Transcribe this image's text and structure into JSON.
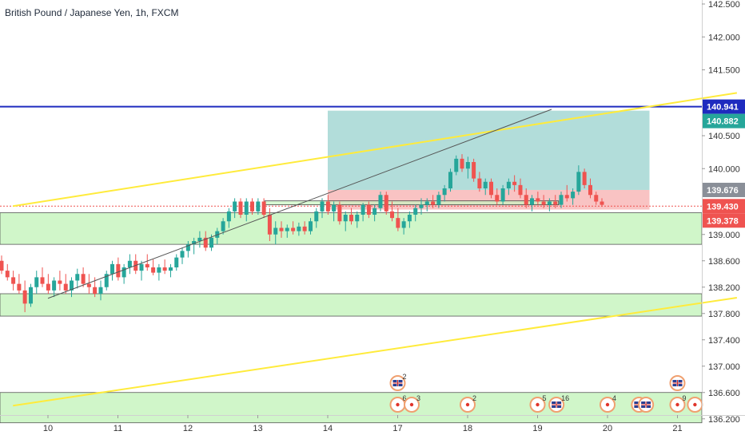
{
  "chart_data": {
    "type": "candlestick",
    "title": "British Pound / Japanese Yen, 1h, FXCM",
    "x_ticks": [
      {
        "day": 10,
        "label": "10"
      },
      {
        "day": 11,
        "label": "11"
      },
      {
        "day": 12,
        "label": "12"
      },
      {
        "day": 13,
        "label": "13"
      },
      {
        "day": 14,
        "label": "14"
      },
      {
        "day": 17,
        "label": "17"
      },
      {
        "day": 18,
        "label": "18"
      },
      {
        "day": 19,
        "label": "19"
      },
      {
        "day": 20,
        "label": "20"
      },
      {
        "day": 21,
        "label": "21"
      }
    ],
    "y_ticks": [
      "142.500",
      "142.000",
      "141.500",
      "140.500",
      "140.000",
      "139.000",
      "138.600",
      "138.200",
      "137.800",
      "137.400",
      "137.000",
      "136.600",
      "136.200"
    ],
    "ylim": [
      136.0,
      142.6
    ],
    "up_color": "#26a69a",
    "down_color": "#ef5350",
    "candles": [
      [
        0.0,
        138.6,
        138.68,
        138.4,
        138.45
      ],
      [
        0.083,
        138.45,
        138.55,
        138.3,
        138.35
      ],
      [
        0.167,
        138.35,
        138.45,
        138.15,
        138.25
      ],
      [
        0.25,
        138.25,
        138.4,
        138.1,
        138.15
      ],
      [
        0.333,
        138.15,
        138.3,
        137.82,
        137.95
      ],
      [
        0.417,
        137.95,
        138.25,
        137.9,
        138.2
      ],
      [
        0.5,
        138.2,
        138.45,
        138.1,
        138.35
      ],
      [
        0.583,
        138.35,
        138.5,
        138.2,
        138.25
      ],
      [
        0.667,
        138.25,
        138.4,
        138.1,
        138.15
      ],
      [
        0.75,
        138.15,
        138.35,
        138.05,
        138.3
      ],
      [
        0.833,
        138.3,
        138.45,
        138.15,
        138.25
      ],
      [
        0.917,
        138.25,
        138.4,
        138.1,
        138.15
      ],
      [
        1.0,
        138.15,
        138.35,
        138.05,
        138.3
      ],
      [
        1.083,
        138.3,
        138.48,
        138.18,
        138.4
      ],
      [
        1.167,
        138.4,
        138.5,
        138.2,
        138.25
      ],
      [
        1.25,
        138.25,
        138.4,
        138.1,
        138.2
      ],
      [
        1.333,
        138.2,
        138.35,
        138.05,
        138.1
      ],
      [
        1.417,
        138.1,
        138.3,
        138.0,
        138.2
      ],
      [
        1.5,
        138.2,
        138.45,
        138.15,
        138.4
      ],
      [
        1.583,
        138.4,
        138.6,
        138.3,
        138.55
      ],
      [
        1.667,
        138.55,
        138.65,
        138.3,
        138.35
      ],
      [
        1.75,
        138.35,
        138.55,
        138.25,
        138.5
      ],
      [
        1.833,
        138.5,
        138.7,
        138.4,
        138.6
      ],
      [
        1.917,
        138.6,
        138.7,
        138.4,
        138.45
      ],
      [
        2.0,
        138.45,
        138.6,
        138.3,
        138.55
      ],
      [
        2.083,
        138.55,
        138.7,
        138.45,
        138.5
      ],
      [
        2.167,
        138.5,
        138.62,
        138.38,
        138.42
      ],
      [
        2.25,
        138.42,
        138.55,
        138.3,
        138.5
      ],
      [
        2.333,
        138.5,
        138.62,
        138.4,
        138.45
      ],
      [
        2.417,
        138.45,
        138.55,
        138.35,
        138.5
      ],
      [
        2.5,
        138.5,
        138.7,
        138.45,
        138.65
      ],
      [
        2.583,
        138.65,
        138.8,
        138.55,
        138.75
      ],
      [
        2.667,
        138.75,
        138.9,
        138.65,
        138.85
      ],
      [
        2.75,
        138.85,
        138.95,
        138.7,
        138.9
      ],
      [
        2.833,
        138.9,
        139.05,
        138.8,
        138.95
      ],
      [
        2.917,
        138.95,
        139.05,
        138.75,
        138.8
      ],
      [
        3.0,
        138.8,
        139.0,
        138.75,
        138.95
      ],
      [
        3.083,
        138.95,
        139.1,
        138.85,
        139.05
      ],
      [
        3.167,
        139.05,
        139.25,
        139.0,
        139.2
      ],
      [
        3.25,
        139.2,
        139.4,
        139.1,
        139.35
      ],
      [
        3.333,
        139.35,
        139.55,
        139.25,
        139.5
      ],
      [
        3.417,
        139.5,
        139.55,
        139.25,
        139.3
      ],
      [
        3.5,
        139.3,
        139.55,
        139.2,
        139.5
      ],
      [
        3.583,
        139.5,
        139.55,
        139.3,
        139.35
      ],
      [
        3.667,
        139.35,
        139.55,
        139.3,
        139.5
      ],
      [
        3.75,
        139.5,
        139.55,
        139.25,
        139.3
      ],
      [
        3.833,
        139.3,
        139.4,
        138.9,
        139.0
      ],
      [
        3.917,
        139.0,
        139.2,
        138.85,
        139.1
      ],
      [
        4.0,
        139.1,
        139.2,
        138.95,
        139.05
      ],
      [
        4.083,
        139.05,
        139.15,
        138.95,
        139.1
      ],
      [
        4.167,
        139.1,
        139.2,
        139.0,
        139.05
      ],
      [
        4.25,
        139.05,
        139.18,
        138.98,
        139.12
      ],
      [
        4.333,
        139.12,
        139.2,
        139.0,
        139.05
      ],
      [
        4.417,
        139.05,
        139.25,
        139.0,
        139.2
      ],
      [
        4.5,
        139.2,
        139.4,
        139.1,
        139.35
      ],
      [
        4.583,
        139.35,
        139.55,
        139.25,
        139.5
      ],
      [
        4.667,
        139.5,
        139.6,
        139.3,
        139.35
      ],
      [
        4.75,
        139.35,
        139.5,
        139.2,
        139.45
      ],
      [
        4.833,
        139.45,
        139.5,
        139.15,
        139.2
      ],
      [
        4.917,
        139.2,
        139.35,
        139.05,
        139.3
      ],
      [
        5.0,
        139.3,
        139.4,
        139.15,
        139.2
      ],
      [
        5.083,
        139.2,
        139.35,
        139.1,
        139.3
      ],
      [
        5.167,
        139.3,
        139.48,
        139.2,
        139.45
      ],
      [
        5.25,
        139.45,
        139.5,
        139.25,
        139.3
      ],
      [
        5.333,
        139.3,
        139.45,
        139.2,
        139.4
      ],
      [
        5.417,
        139.4,
        139.65,
        139.35,
        139.6
      ],
      [
        5.5,
        139.6,
        139.65,
        139.3,
        139.35
      ],
      [
        5.583,
        139.35,
        139.5,
        139.2,
        139.25
      ],
      [
        5.667,
        139.25,
        139.4,
        139.05,
        139.1
      ],
      [
        5.75,
        139.1,
        139.25,
        139.0,
        139.2
      ],
      [
        5.833,
        139.2,
        139.35,
        139.1,
        139.3
      ],
      [
        5.917,
        139.3,
        139.45,
        139.2,
        139.4
      ],
      [
        6.0,
        139.4,
        139.55,
        139.3,
        139.45
      ],
      [
        6.083,
        139.45,
        139.55,
        139.35,
        139.5
      ],
      [
        6.167,
        139.5,
        139.6,
        139.4,
        139.45
      ],
      [
        6.25,
        139.45,
        139.65,
        139.4,
        139.6
      ],
      [
        6.333,
        139.6,
        139.75,
        139.5,
        139.7
      ],
      [
        6.417,
        139.7,
        140.0,
        139.65,
        139.95
      ],
      [
        6.5,
        139.95,
        140.2,
        139.9,
        140.15
      ],
      [
        6.583,
        140.15,
        140.22,
        139.95,
        140.0
      ],
      [
        6.667,
        140.0,
        140.18,
        139.85,
        140.1
      ],
      [
        6.75,
        140.1,
        140.15,
        139.8,
        139.85
      ],
      [
        6.833,
        139.85,
        139.95,
        139.65,
        139.7
      ],
      [
        6.917,
        139.7,
        139.85,
        139.6,
        139.8
      ],
      [
        7.0,
        139.8,
        139.85,
        139.55,
        139.6
      ],
      [
        7.083,
        139.6,
        139.7,
        139.45,
        139.5
      ],
      [
        7.167,
        139.5,
        139.75,
        139.45,
        139.7
      ],
      [
        7.25,
        139.7,
        139.85,
        139.6,
        139.8
      ],
      [
        7.333,
        139.8,
        139.9,
        139.65,
        139.75
      ],
      [
        7.417,
        139.75,
        139.85,
        139.55,
        139.6
      ],
      [
        7.5,
        139.6,
        139.7,
        139.4,
        139.45
      ],
      [
        7.583,
        139.45,
        139.6,
        139.35,
        139.55
      ],
      [
        7.667,
        139.55,
        139.65,
        139.45,
        139.5
      ],
      [
        7.75,
        139.5,
        139.6,
        139.4,
        139.45
      ],
      [
        7.833,
        139.45,
        139.55,
        139.35,
        139.5
      ],
      [
        7.917,
        139.5,
        139.6,
        139.4,
        139.45
      ],
      [
        8.0,
        139.45,
        139.65,
        139.4,
        139.6
      ],
      [
        8.083,
        139.6,
        139.75,
        139.5,
        139.55
      ],
      [
        8.167,
        139.55,
        139.7,
        139.45,
        139.65
      ],
      [
        8.25,
        139.65,
        140.05,
        139.6,
        139.95
      ],
      [
        8.333,
        139.95,
        140.0,
        139.7,
        139.75
      ],
      [
        8.417,
        139.75,
        139.85,
        139.55,
        139.6
      ],
      [
        8.5,
        139.6,
        139.65,
        139.45,
        139.5
      ],
      [
        8.583,
        139.5,
        139.55,
        139.42,
        139.45
      ]
    ],
    "trendlines": [
      {
        "name": "upper-channel",
        "color": "#ffeb3b",
        "x": [
          -0.5,
          9.85
        ],
        "y": [
          139.43,
          141.15
        ]
      },
      {
        "name": "lower-channel",
        "color": "#ffeb3b",
        "x": [
          -0.5,
          9.85
        ],
        "y": [
          136.4,
          138.04
        ]
      },
      {
        "name": "support-trend",
        "color": "#555555",
        "x": [
          0.0,
          7.2
        ],
        "y": [
          138.03,
          140.9
        ]
      }
    ],
    "horizontal_levels": [
      {
        "name": "resistance",
        "price": 140.941,
        "color": "#1e2bbf"
      },
      {
        "name": "current",
        "price": 139.43,
        "color": "#ef5350",
        "dashed": true
      }
    ],
    "zones": [
      {
        "name": "zone-1",
        "top": 139.33,
        "bottom": 138.85
      },
      {
        "name": "zone-2",
        "top": 138.1,
        "bottom": 137.76
      },
      {
        "name": "zone-3",
        "top": 136.6,
        "bottom": 136.14
      }
    ],
    "consolidation_box": {
      "x": [
        3.1,
        7.3
      ],
      "top": 139.51,
      "bottom": 139.45
    },
    "position": {
      "x": [
        4.0,
        8.6
      ],
      "entry": 139.43,
      "target_top": 140.88,
      "target_bottom": 139.676,
      "stop_top": 139.676,
      "stop_bottom": 139.378
    },
    "price_badges": [
      {
        "label": "140.941",
        "price": 140.941,
        "color": "#1e2bbf"
      },
      {
        "label": "140.882",
        "price": 140.882,
        "color": "#26a69a"
      },
      {
        "label": "139.676",
        "price": 139.676,
        "color": "#8a8f98"
      },
      {
        "label": "139.430",
        "price": 139.43,
        "color": "#ef5350"
      },
      {
        "label": "139.378",
        "price": 139.378,
        "color": "#ef5350"
      }
    ],
    "events": [
      {
        "day": 17.0,
        "count": "2",
        "row": 2,
        "icon": "flag-uk-icon"
      },
      {
        "day": 17.0,
        "count": "6",
        "row": 1,
        "icon": "event-dot-icon"
      },
      {
        "day": 17.2,
        "count": "3",
        "row": 1,
        "icon": "event-dot-icon"
      },
      {
        "day": 18.0,
        "count": "2",
        "row": 1,
        "icon": "event-dot-icon"
      },
      {
        "day": 19.0,
        "count": "5",
        "row": 1,
        "icon": "event-dot-icon"
      },
      {
        "day": 19.27,
        "count": "16",
        "row": 1,
        "icon": "flag-uk-icon"
      },
      {
        "day": 20.0,
        "count": "4",
        "row": 1,
        "icon": "event-dot-icon"
      },
      {
        "day": 20.45,
        "count": "",
        "row": 1,
        "icon": "flag-uk-icon"
      },
      {
        "day": 20.55,
        "count": "",
        "row": 1,
        "icon": "flag-uk-icon"
      },
      {
        "day": 21.0,
        "count": "",
        "row": 2,
        "icon": "flag-uk-icon"
      },
      {
        "day": 21.0,
        "count": "9",
        "row": 1,
        "icon": "event-dot-icon"
      },
      {
        "day": 21.25,
        "count": "",
        "row": 1,
        "icon": "event-dot-icon"
      }
    ]
  }
}
